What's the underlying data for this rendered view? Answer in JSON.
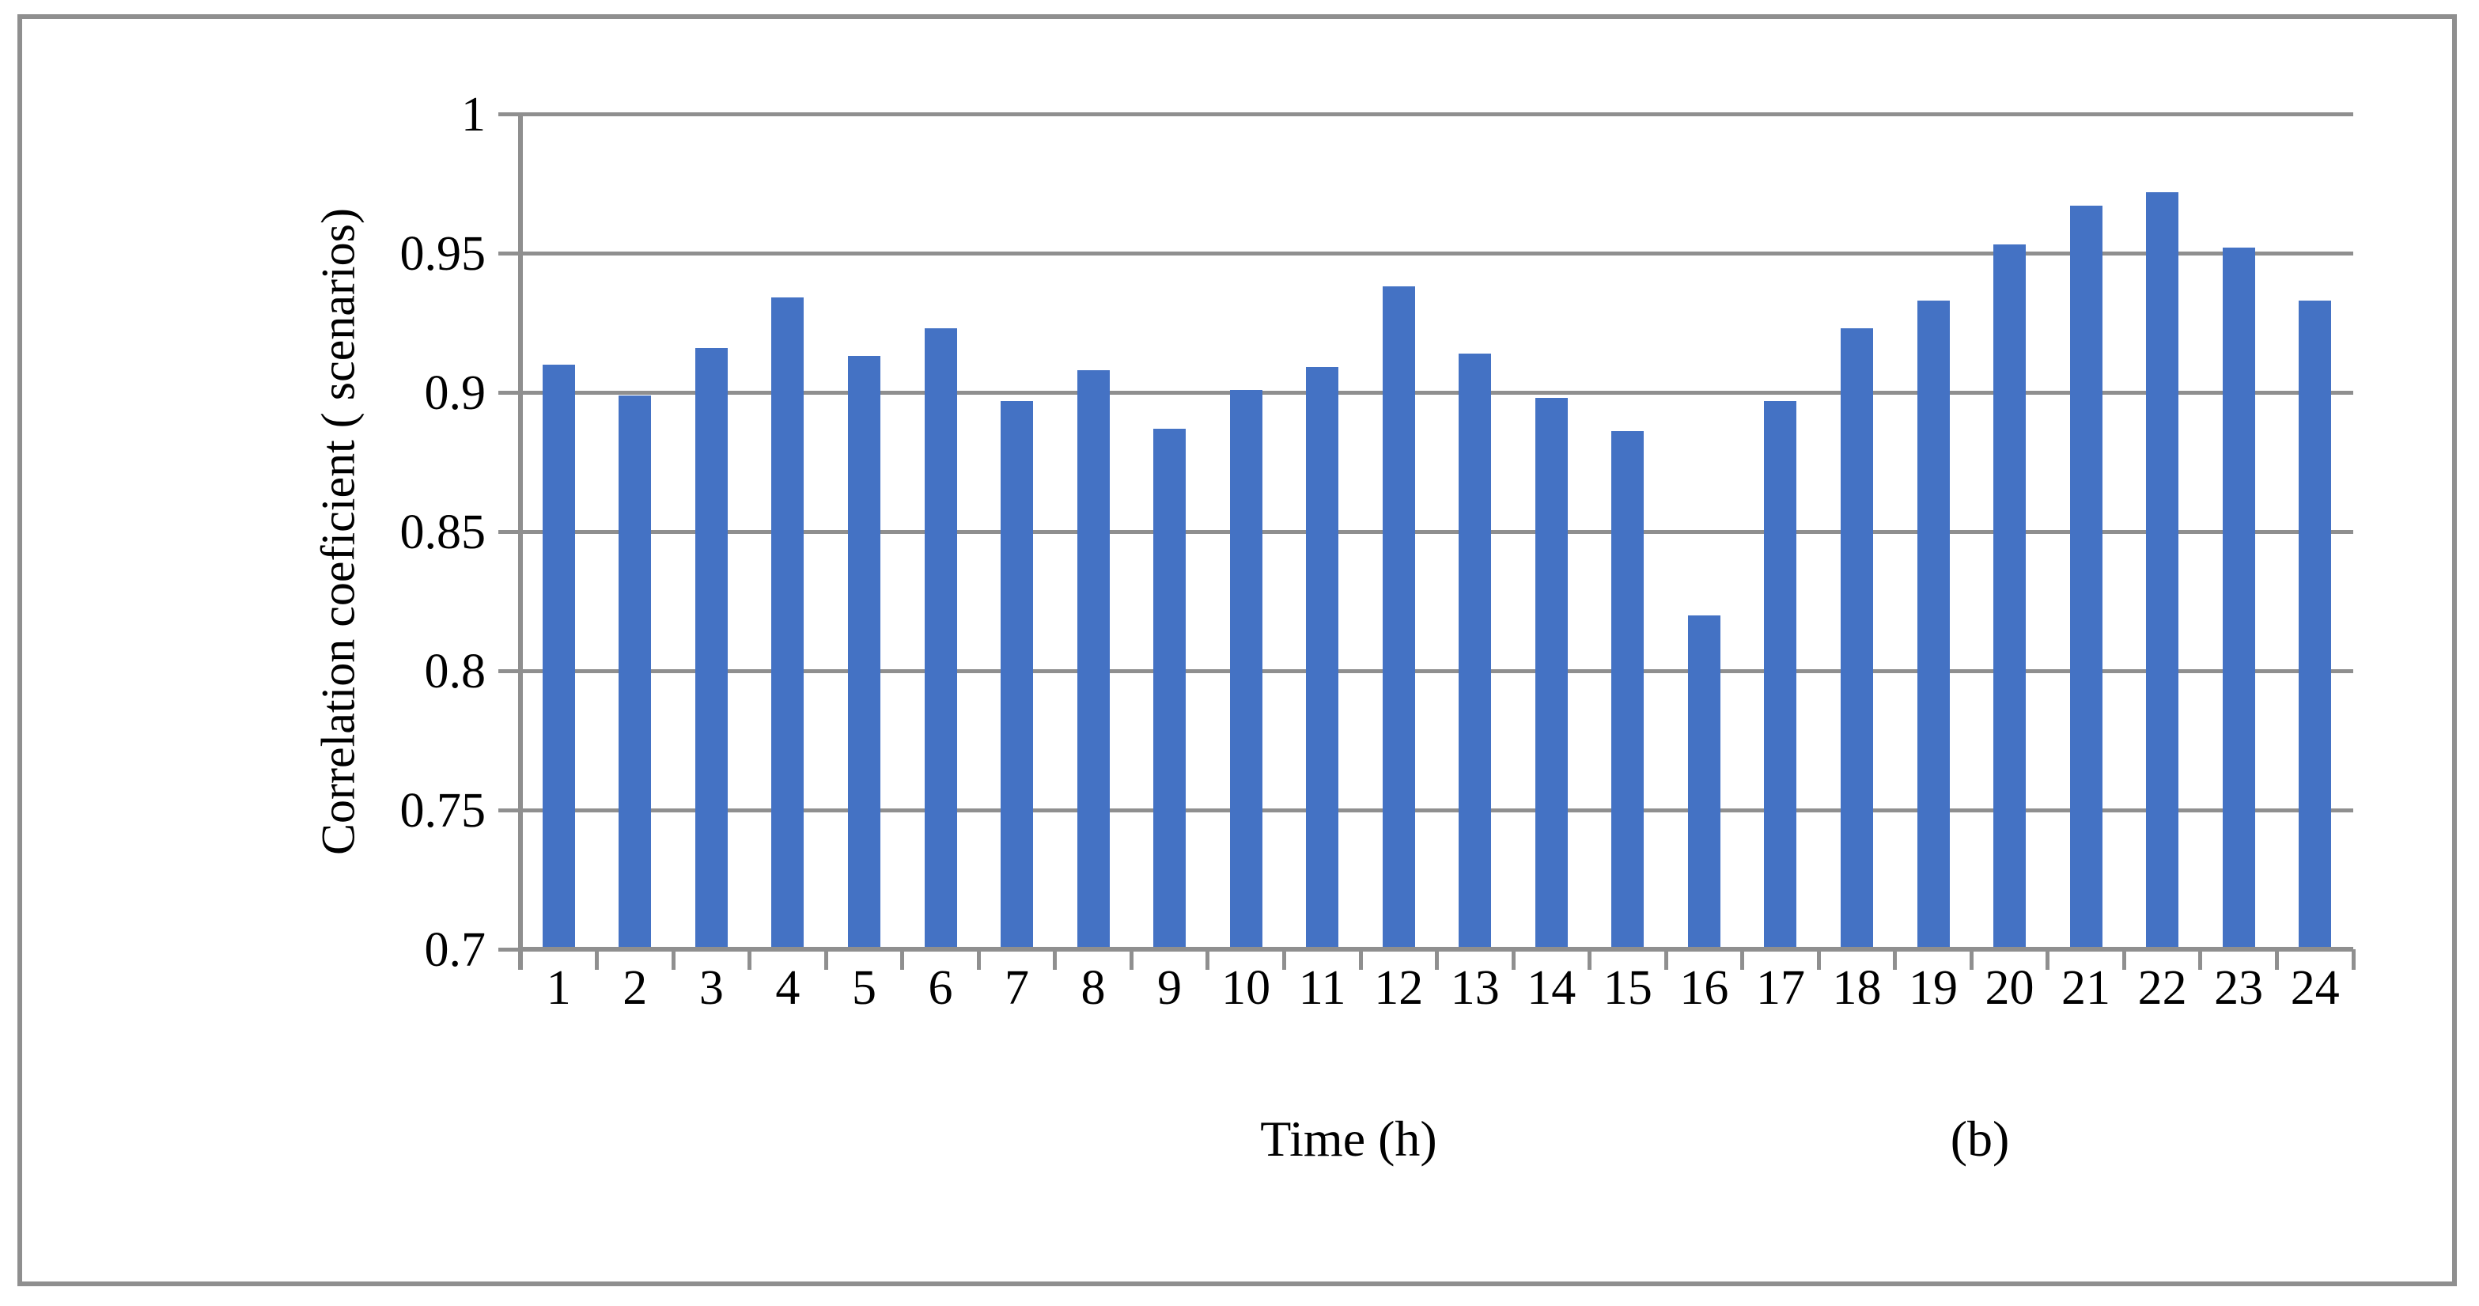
{
  "figure": {
    "background_color": "#FFFFFF",
    "border_color": "#8F8F8F"
  },
  "chart_data": {
    "type": "bar",
    "ylabel": "Correlation coeficient ( scenarios)",
    "xlabel": "Time (h)",
    "panel_label": "(b)",
    "categories": [
      "1",
      "2",
      "3",
      "4",
      "5",
      "6",
      "7",
      "8",
      "9",
      "10",
      "11",
      "12",
      "13",
      "14",
      "15",
      "16",
      "17",
      "18",
      "19",
      "20",
      "21",
      "22",
      "23",
      "24"
    ],
    "values": [
      0.91,
      0.899,
      0.916,
      0.934,
      0.913,
      0.923,
      0.897,
      0.908,
      0.887,
      0.901,
      0.909,
      0.938,
      0.914,
      0.898,
      0.886,
      0.82,
      0.897,
      0.923,
      0.933,
      0.953,
      0.967,
      0.972,
      0.952,
      0.933
    ],
    "ylim": [
      0.7,
      1.0
    ],
    "ytick_step": 0.05,
    "ytick_labels": [
      "1",
      "0.95",
      "0.9",
      "0.85",
      "0.8",
      "0.75",
      "0.7"
    ],
    "grid": true,
    "legend": false,
    "bar_color": "#4472C4",
    "axis_color": "#8F8F8F"
  }
}
